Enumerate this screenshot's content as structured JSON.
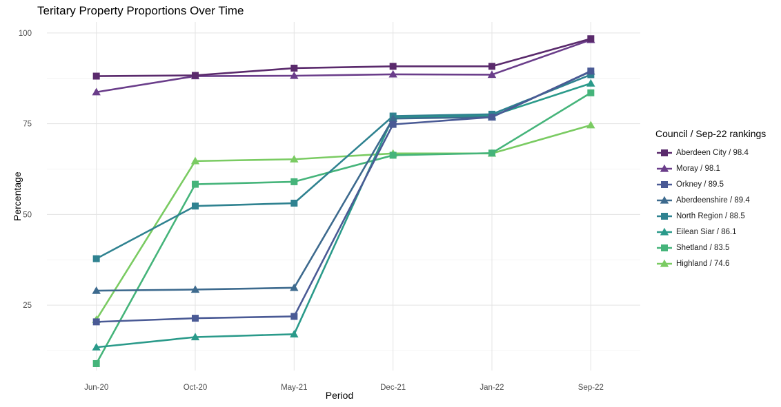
{
  "chart_data": {
    "type": "line",
    "title": "Teritary Property Proportions Over Time",
    "xlabel": "Period",
    "ylabel": "Percentage",
    "categories": [
      "Jun-20",
      "Oct-20",
      "May-21",
      "Dec-21",
      "Jan-22",
      "Sep-22"
    ],
    "ylim": [
      7,
      103
    ],
    "yticks": [
      25,
      50,
      75,
      100
    ],
    "grid": true,
    "legend_title": "Council / Sep-22 rankings",
    "legend_position": "right",
    "series": [
      {
        "name": "Aberdeen City / 98.4",
        "marker": "square",
        "color": "#5a2a6c",
        "values": [
          88.1,
          88.3,
          90.3,
          90.8,
          90.8,
          98.4
        ]
      },
      {
        "name": "Moray / 98.1",
        "marker": "triangle",
        "color": "#6a3d8a",
        "values": [
          83.7,
          88.1,
          88.2,
          88.6,
          88.5,
          98.1
        ]
      },
      {
        "name": "Orkney / 89.5",
        "marker": "square",
        "color": "#4a5a95",
        "values": [
          20.4,
          21.4,
          21.9,
          74.8,
          76.8,
          89.5
        ]
      },
      {
        "name": "Aberdeenshire / 89.4",
        "marker": "triangle",
        "color": "#3d6a8e",
        "values": [
          29.0,
          29.3,
          29.8,
          76.4,
          76.8,
          89.4
        ]
      },
      {
        "name": "North Region / 88.5",
        "marker": "square",
        "color": "#2f8290",
        "values": [
          37.8,
          52.3,
          53.1,
          77.1,
          77.6,
          88.5
        ]
      },
      {
        "name": "Eilean Siar / 86.1",
        "marker": "triangle",
        "color": "#2a9a8a",
        "values": [
          13.4,
          16.2,
          17.0,
          76.8,
          77.2,
          86.1
        ]
      },
      {
        "name": "Shetland / 83.5",
        "marker": "square",
        "color": "#45b47a",
        "values": [
          8.9,
          58.3,
          59.0,
          66.3,
          66.9,
          83.5
        ]
      },
      {
        "name": "Highland / 74.6",
        "marker": "triangle",
        "color": "#7acb62",
        "values": [
          21.0,
          64.7,
          65.2,
          66.8,
          66.8,
          74.6
        ]
      }
    ]
  }
}
